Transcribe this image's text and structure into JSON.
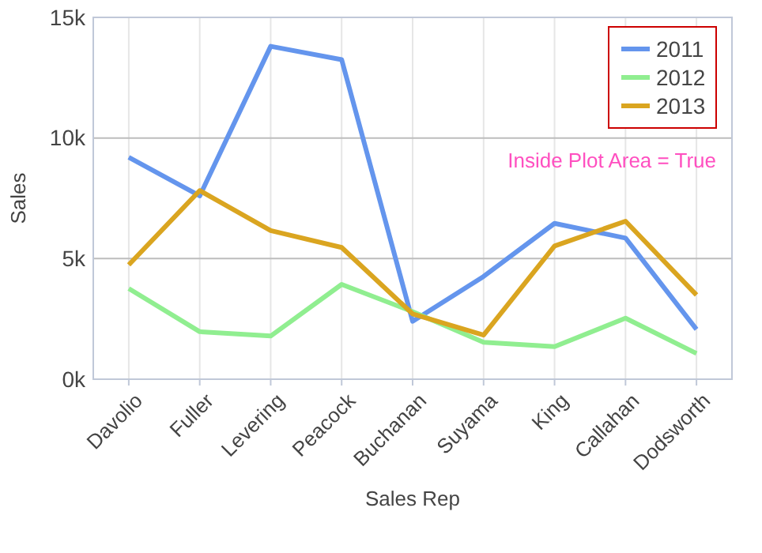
{
  "chart_data": {
    "type": "line",
    "xlabel": "Sales Rep",
    "ylabel": "Sales",
    "categories": [
      "Davolio",
      "Fuller",
      "Levering",
      "Peacock",
      "Buchanan",
      "Suyama",
      "King",
      "Callahan",
      "Dodsworth"
    ],
    "series": [
      {
        "name": "2011",
        "color": "#6495ed",
        "values": [
          9.2,
          7.6,
          13.8,
          13.25,
          2.4,
          4.26,
          6.46,
          5.85,
          2.07
        ]
      },
      {
        "name": "2012",
        "color": "#90ee90",
        "values": [
          3.76,
          1.97,
          1.79,
          3.93,
          2.8,
          1.53,
          1.35,
          2.53,
          1.07
        ]
      },
      {
        "name": "2013",
        "color": "#daa520",
        "values": [
          4.74,
          7.82,
          6.16,
          5.46,
          2.71,
          1.83,
          5.52,
          6.55,
          3.49
        ]
      }
    ],
    "ylim": [
      0,
      15
    ],
    "yticks": [
      {
        "value": 0,
        "label": "0k"
      },
      {
        "value": 5,
        "label": "5k"
      },
      {
        "value": 10,
        "label": "10k"
      },
      {
        "value": 15,
        "label": "15k"
      }
    ],
    "grid": true,
    "legend": "top right",
    "marker": "none",
    "line_style": "solid",
    "annotations": [
      "Inside Plot Area = True"
    ]
  }
}
